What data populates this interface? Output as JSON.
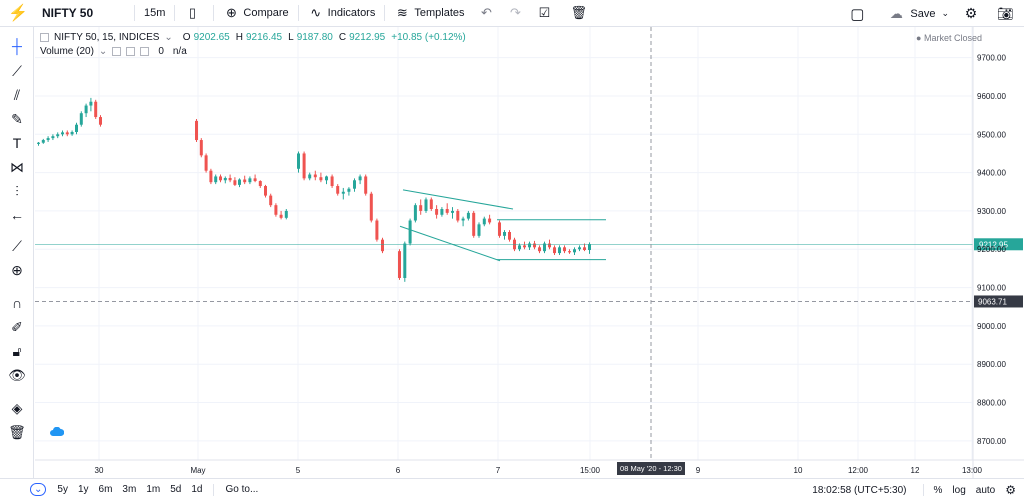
{
  "toolbar": {
    "symbol": "NIFTY 50",
    "interval": "15m",
    "compare_label": "Compare",
    "indicators_label": "Indicators",
    "templates_label": "Templates",
    "save_label": "Save"
  },
  "legend": {
    "title": "NIFTY 50, 15, INDICES",
    "open_label": "O",
    "open": "9202.65",
    "high_label": "H",
    "high": "9216.45",
    "low_label": "L",
    "low": "9187.80",
    "close_label": "C",
    "close": "9212.95",
    "change": "+10.85 (+0.12%)",
    "volume_label": "Volume (20)",
    "volume_value": "0",
    "volume_na": "n/a"
  },
  "market_status": "Market Closed",
  "price_axis": {
    "ticks": [
      "9700.00",
      "9600.00",
      "9500.00",
      "9400.00",
      "9300.00",
      "9200.00",
      "9100.00",
      "9000.00",
      "8900.00",
      "8800.00",
      "8700.00"
    ],
    "current_price": "9212.95",
    "crosshair_price": "9063.71"
  },
  "time_axis": {
    "ticks": [
      "30",
      "May",
      "5",
      "6",
      "7",
      "15:00",
      "9",
      "10",
      "12:00",
      "12",
      "13:00"
    ],
    "crosshair_time": "08 May '20 - 12:30"
  },
  "bottom": {
    "ranges": [
      "5y",
      "1y",
      "6m",
      "3m",
      "1m",
      "5d",
      "1d"
    ],
    "goto_label": "Go to...",
    "clock": "18:02:58 (UTC+5:30)",
    "percent_label": "%",
    "log_label": "log",
    "auto_label": "auto"
  },
  "colors": {
    "up": "#26a69a",
    "down": "#ef5350",
    "accent": "#2962ff",
    "grid": "#f0f3fa"
  },
  "chart_data": {
    "type": "candlestick",
    "ylim": [
      8650,
      9780
    ],
    "candles": [
      [
        9475,
        9480,
        9470,
        9478
      ],
      [
        9478,
        9488,
        9475,
        9485
      ],
      [
        9485,
        9495,
        9480,
        9490
      ],
      [
        9490,
        9500,
        9485,
        9495
      ],
      [
        9495,
        9505,
        9490,
        9500
      ],
      [
        9500,
        9510,
        9495,
        9505
      ],
      [
        9505,
        9510,
        9495,
        9500
      ],
      [
        9500,
        9510,
        9496,
        9506
      ],
      [
        9506,
        9530,
        9500,
        9525
      ],
      [
        9525,
        9560,
        9520,
        9555
      ],
      [
        9555,
        9580,
        9545,
        9575
      ],
      [
        9575,
        9595,
        9560,
        9585
      ],
      [
        9585,
        9590,
        9540,
        9545
      ],
      [
        9545,
        9550,
        9520,
        9525
      ],
      [
        9535,
        9540,
        9480,
        9485
      ],
      [
        9485,
        9490,
        9440,
        9445
      ],
      [
        9445,
        9450,
        9400,
        9405
      ],
      [
        9405,
        9410,
        9370,
        9375
      ],
      [
        9375,
        9395,
        9370,
        9390
      ],
      [
        9390,
        9395,
        9375,
        9380
      ],
      [
        9380,
        9390,
        9372,
        9386
      ],
      [
        9386,
        9395,
        9375,
        9380
      ],
      [
        9380,
        9388,
        9365,
        9368
      ],
      [
        9368,
        9385,
        9362,
        9382
      ],
      [
        9382,
        9392,
        9370,
        9375
      ],
      [
        9375,
        9390,
        9370,
        9385
      ],
      [
        9385,
        9395,
        9375,
        9378
      ],
      [
        9378,
        9380,
        9360,
        9365
      ],
      [
        9365,
        9368,
        9335,
        9340
      ],
      [
        9340,
        9345,
        9310,
        9315
      ],
      [
        9315,
        9320,
        9285,
        9290
      ],
      [
        9290,
        9300,
        9278,
        9282
      ],
      [
        9282,
        9305,
        9278,
        9300
      ],
      [
        9410,
        9455,
        9400,
        9450
      ],
      [
        9450,
        9455,
        9380,
        9385
      ],
      [
        9385,
        9400,
        9380,
        9395
      ],
      [
        9395,
        9405,
        9380,
        9388
      ],
      [
        9388,
        9400,
        9375,
        9380
      ],
      [
        9380,
        9392,
        9370,
        9390
      ],
      [
        9390,
        9395,
        9360,
        9365
      ],
      [
        9365,
        9370,
        9340,
        9345
      ],
      [
        9345,
        9360,
        9330,
        9350
      ],
      [
        9350,
        9362,
        9340,
        9358
      ],
      [
        9358,
        9385,
        9350,
        9380
      ],
      [
        9380,
        9395,
        9370,
        9390
      ],
      [
        9390,
        9395,
        9340,
        9345
      ],
      [
        9345,
        9350,
        9270,
        9275
      ],
      [
        9275,
        9280,
        9220,
        9225
      ],
      [
        9225,
        9230,
        9190,
        9195
      ],
      [
        9195,
        9200,
        9120,
        9125
      ],
      [
        9125,
        9220,
        9115,
        9215
      ],
      [
        9215,
        9280,
        9210,
        9275
      ],
      [
        9275,
        9320,
        9270,
        9315
      ],
      [
        9315,
        9330,
        9290,
        9300
      ],
      [
        9300,
        9335,
        9295,
        9330
      ],
      [
        9330,
        9335,
        9300,
        9305
      ],
      [
        9305,
        9315,
        9280,
        9290
      ],
      [
        9290,
        9310,
        9285,
        9305
      ],
      [
        9305,
        9320,
        9290,
        9295
      ],
      [
        9295,
        9310,
        9280,
        9300
      ],
      [
        9300,
        9305,
        9270,
        9275
      ],
      [
        9275,
        9285,
        9260,
        9280
      ],
      [
        9280,
        9300,
        9275,
        9295
      ],
      [
        9295,
        9300,
        9230,
        9235
      ],
      [
        9235,
        9270,
        9230,
        9265
      ],
      [
        9265,
        9285,
        9260,
        9280
      ],
      [
        9280,
        9290,
        9265,
        9270
      ],
      [
        9270,
        9275,
        9230,
        9235
      ],
      [
        9235,
        9250,
        9225,
        9245
      ],
      [
        9245,
        9250,
        9220,
        9225
      ],
      [
        9225,
        9230,
        9195,
        9200
      ],
      [
        9200,
        9215,
        9195,
        9210
      ],
      [
        9210,
        9220,
        9200,
        9205
      ],
      [
        9205,
        9220,
        9198,
        9215
      ],
      [
        9215,
        9222,
        9200,
        9205
      ],
      [
        9205,
        9210,
        9190,
        9195
      ],
      [
        9195,
        9220,
        9190,
        9215
      ],
      [
        9215,
        9225,
        9200,
        9205
      ],
      [
        9205,
        9210,
        9185,
        9190
      ],
      [
        9190,
        9210,
        9185,
        9205
      ],
      [
        9205,
        9210,
        9190,
        9195
      ],
      [
        9195,
        9200,
        9188,
        9192
      ],
      [
        9192,
        9205,
        9185,
        9200
      ],
      [
        9200,
        9210,
        9195,
        9205
      ],
      [
        9205,
        9215,
        9195,
        9198
      ],
      [
        9198,
        9218,
        9188,
        9213
      ]
    ]
  }
}
